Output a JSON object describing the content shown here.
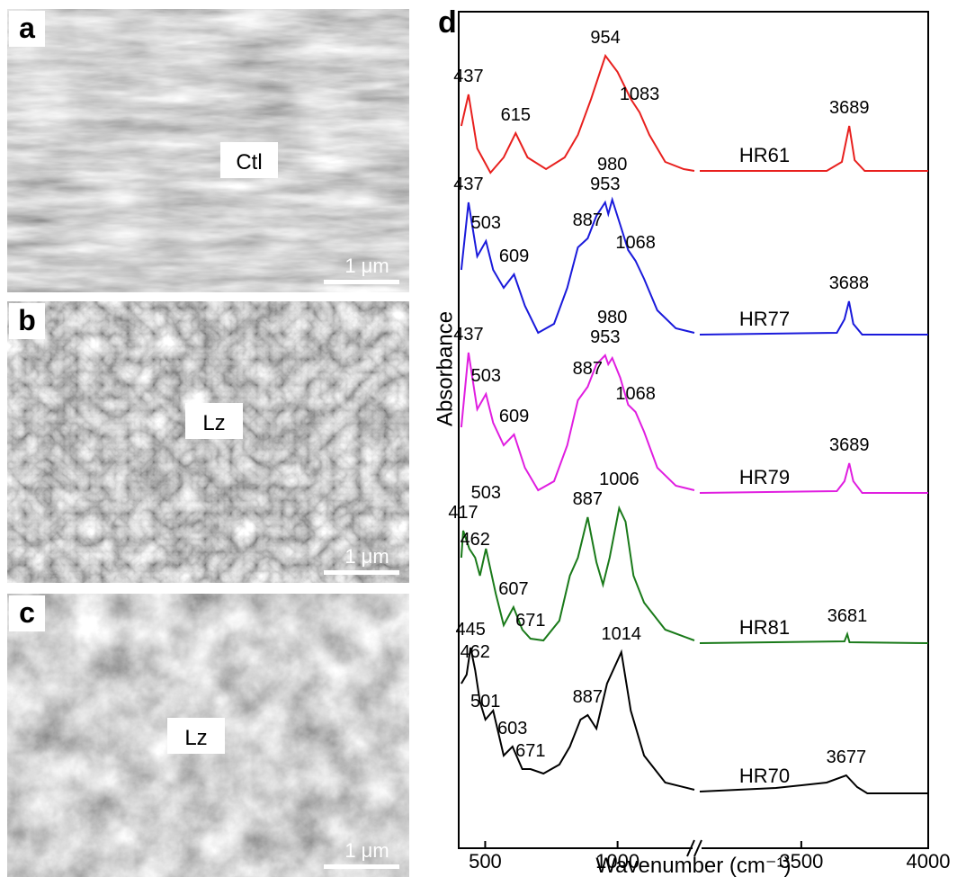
{
  "panels": [
    {
      "label": "a",
      "sample": "Ctl",
      "scale_bar": "1 μm"
    },
    {
      "label": "b",
      "sample": "Lz",
      "scale_bar": "1 μm"
    },
    {
      "label": "c",
      "sample": "Lz",
      "scale_bar": "1 μm"
    }
  ],
  "chart_data": {
    "type": "line",
    "panel_label": "d",
    "x_label": "Wavenumber (cm⁻¹)",
    "y_label": "Absorbance",
    "xlim": [
      400,
      4000
    ],
    "xbreak": [
      1290,
      3100
    ],
    "xticks": [
      500,
      1000,
      3500,
      4000
    ],
    "ylim": [
      0,
      93
    ],
    "series": [
      {
        "name": "HR61",
        "color": "#e8201e",
        "x": [
          410,
          437,
          470,
          520,
          570,
          615,
          660,
          730,
          800,
          850,
          900,
          954,
          1000,
          1050,
          1083,
          1120,
          1180,
          1250,
          1290,
          3100,
          3600,
          3660,
          3689,
          3710,
          3750,
          4000
        ],
        "values": [
          80.3,
          83.8,
          77.8,
          75.1,
          76.8,
          79.5,
          76.8,
          75.5,
          76.8,
          79.3,
          83.3,
          88.1,
          86.3,
          83.3,
          81.8,
          79.3,
          76.3,
          75.5,
          75.3,
          75.3,
          75.3,
          76.3,
          80.3,
          76.5,
          75.3,
          75.3
        ],
        "peaks": [
          437,
          615,
          954,
          1083,
          3689
        ]
      },
      {
        "name": "HR77",
        "color": "#1a1adb",
        "x": [
          410,
          437,
          470,
          503,
          530,
          570,
          609,
          650,
          700,
          760,
          810,
          850,
          887,
          920,
          953,
          965,
          980,
          1010,
          1040,
          1068,
          1100,
          1150,
          1220,
          1290,
          3100,
          3640,
          3670,
          3688,
          3705,
          3740,
          4000
        ],
        "values": [
          64.3,
          71.8,
          65.8,
          67.5,
          64.3,
          62.3,
          63.8,
          60.3,
          57.3,
          58.3,
          62.3,
          66.8,
          67.8,
          70.3,
          71.8,
          70.5,
          72.1,
          69.3,
          66.5,
          65.3,
          63.3,
          59.8,
          57.8,
          57.3,
          57.1,
          57.3,
          58.8,
          60.8,
          58.3,
          57.1,
          57.1
        ],
        "peaks": [
          437,
          503,
          609,
          887,
          953,
          980,
          1068,
          3688
        ]
      },
      {
        "name": "HR79",
        "color": "#e01ee0",
        "x": [
          410,
          437,
          470,
          503,
          530,
          570,
          609,
          650,
          700,
          760,
          810,
          850,
          887,
          920,
          953,
          965,
          980,
          1010,
          1040,
          1068,
          1100,
          1150,
          1220,
          1290,
          3100,
          3640,
          3670,
          3689,
          3705,
          3740,
          4000
        ],
        "values": [
          46.8,
          55.1,
          48.8,
          50.5,
          47.3,
          44.8,
          46.0,
          42.3,
          39.8,
          40.8,
          44.8,
          49.8,
          51.3,
          53.8,
          54.8,
          53.8,
          54.5,
          52.3,
          49.3,
          48.5,
          46.3,
          42.3,
          40.3,
          39.8,
          39.5,
          39.7,
          40.8,
          42.8,
          40.8,
          39.5,
          39.5
        ],
        "peaks": [
          437,
          503,
          609,
          887,
          953,
          980,
          1068,
          3689
        ]
      },
      {
        "name": "HR81",
        "color": "#1a7a1a",
        "x": [
          410,
          417,
          440,
          462,
          480,
          503,
          540,
          570,
          607,
          640,
          671,
          720,
          780,
          820,
          850,
          887,
          920,
          945,
          970,
          1006,
          1030,
          1060,
          1100,
          1180,
          1290,
          3100,
          3670,
          3681,
          3690,
          4000
        ],
        "values": [
          32.3,
          35.3,
          33.3,
          32.3,
          30.3,
          33.3,
          28.3,
          24.8,
          26.8,
          24.3,
          23.3,
          23.1,
          25.3,
          30.3,
          32.3,
          36.8,
          31.8,
          29.3,
          32.3,
          37.8,
          36.3,
          30.3,
          27.3,
          24.3,
          23.1,
          22.8,
          23.0,
          23.8,
          22.9,
          22.8
        ],
        "peaks": [
          417,
          462,
          503,
          607,
          671,
          887,
          1006,
          3681
        ]
      },
      {
        "name": "HR70",
        "color": "#000000",
        "x": [
          410,
          430,
          445,
          462,
          480,
          501,
          530,
          570,
          603,
          640,
          671,
          720,
          780,
          820,
          860,
          887,
          920,
          960,
          1014,
          1050,
          1100,
          1180,
          1290,
          3100,
          3400,
          3600,
          3677,
          3720,
          3760,
          4000
        ],
        "values": [
          18.3,
          19.3,
          22.3,
          19.8,
          16.3,
          14.3,
          15.3,
          10.3,
          11.3,
          8.8,
          8.8,
          8.3,
          9.3,
          11.3,
          14.3,
          14.8,
          13.3,
          18.3,
          21.8,
          15.3,
          10.3,
          7.3,
          6.5,
          6.3,
          6.7,
          7.3,
          8.1,
          6.8,
          6.1,
          6.1
        ],
        "peaks": [
          445,
          462,
          501,
          603,
          671,
          887,
          1014,
          3677
        ]
      }
    ]
  }
}
